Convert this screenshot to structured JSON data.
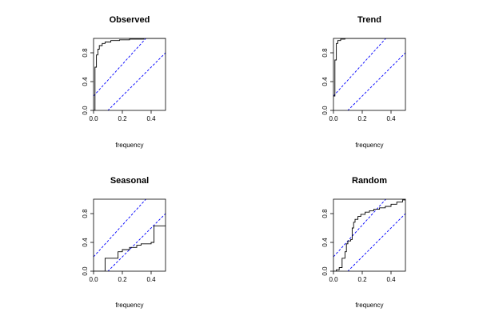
{
  "figure": {
    "background": "#ffffff"
  },
  "colors": {
    "step_line": "#000000",
    "band_line": "#0000ff",
    "axis": "#000000"
  },
  "chart_data": [
    {
      "type": "line",
      "title": "Observed",
      "xlabel": "frequency",
      "ylabel": "",
      "xlim": [
        0,
        0.5
      ],
      "ylim": [
        0,
        1
      ],
      "x_ticks": [
        "0.0",
        "0.2",
        "0.4"
      ],
      "y_ticks": [
        "0.0",
        "0.4",
        "0.8"
      ],
      "grid": false,
      "series": [
        {
          "style": "step",
          "x": [
            0,
            0.01,
            0.01,
            0.02,
            0.03,
            0.04,
            0.06,
            0.08,
            0.12,
            0.18,
            0.25,
            0.35,
            0.5
          ],
          "y": [
            0,
            0,
            0.6,
            0.77,
            0.85,
            0.9,
            0.93,
            0.95,
            0.97,
            0.98,
            0.99,
            1.0,
            1.0
          ]
        }
      ],
      "bands": [
        {
          "style": "dashed",
          "x": [
            0,
            0.5
          ],
          "y": [
            0.2,
            1.3
          ]
        },
        {
          "style": "dashed",
          "x": [
            0,
            0.5
          ],
          "y": [
            -0.2,
            0.8
          ]
        }
      ]
    },
    {
      "type": "line",
      "title": "Trend",
      "xlabel": "frequency",
      "ylabel": "",
      "xlim": [
        0,
        0.5
      ],
      "ylim": [
        0,
        1
      ],
      "x_ticks": [
        "0.0",
        "0.2",
        "0.4"
      ],
      "y_ticks": [
        "0.0",
        "0.4",
        "0.8"
      ],
      "grid": false,
      "series": [
        {
          "style": "step",
          "x": [
            0,
            0.01,
            0.02,
            0.03,
            0.05,
            0.08,
            0.5
          ],
          "y": [
            0.2,
            0.7,
            0.93,
            0.97,
            0.99,
            1.0,
            1.0
          ]
        }
      ],
      "bands": [
        {
          "style": "dashed",
          "x": [
            0,
            0.5
          ],
          "y": [
            0.2,
            1.3
          ]
        },
        {
          "style": "dashed",
          "x": [
            0,
            0.5
          ],
          "y": [
            -0.2,
            0.8
          ]
        }
      ]
    },
    {
      "type": "line",
      "title": "Seasonal",
      "xlabel": "frequency",
      "ylabel": "",
      "xlim": [
        0,
        0.5
      ],
      "ylim": [
        0,
        1
      ],
      "x_ticks": [
        "0.0",
        "0.2",
        "0.4"
      ],
      "y_ticks": [
        "0.0",
        "0.4",
        "0.8"
      ],
      "grid": false,
      "series": [
        {
          "style": "step",
          "x": [
            0,
            0.08,
            0.17,
            0.2,
            0.25,
            0.3,
            0.33,
            0.4,
            0.42,
            0.5
          ],
          "y": [
            0,
            0.18,
            0.27,
            0.3,
            0.33,
            0.36,
            0.38,
            0.4,
            0.63,
            0.64
          ]
        }
      ],
      "bands": [
        {
          "style": "dashed",
          "x": [
            0,
            0.5
          ],
          "y": [
            0.2,
            1.3
          ]
        },
        {
          "style": "dashed",
          "x": [
            0,
            0.5
          ],
          "y": [
            -0.2,
            0.8
          ]
        }
      ]
    },
    {
      "type": "line",
      "title": "Random",
      "xlabel": "frequency",
      "ylabel": "",
      "xlim": [
        0,
        0.5
      ],
      "ylim": [
        0,
        1
      ],
      "x_ticks": [
        "0.0",
        "0.2",
        "0.4"
      ],
      "y_ticks": [
        "0.0",
        "0.4",
        "0.8"
      ],
      "grid": false,
      "series": [
        {
          "style": "step",
          "x": [
            0,
            0.02,
            0.04,
            0.06,
            0.08,
            0.09,
            0.1,
            0.12,
            0.13,
            0.14,
            0.15,
            0.17,
            0.19,
            0.22,
            0.25,
            0.28,
            0.32,
            0.36,
            0.4,
            0.44,
            0.48,
            0.5
          ],
          "y": [
            0,
            0.02,
            0.05,
            0.18,
            0.27,
            0.38,
            0.42,
            0.44,
            0.6,
            0.68,
            0.72,
            0.76,
            0.79,
            0.82,
            0.84,
            0.86,
            0.88,
            0.9,
            0.93,
            0.96,
            0.99,
            1.0
          ]
        }
      ],
      "bands": [
        {
          "style": "dashed",
          "x": [
            0,
            0.5
          ],
          "y": [
            0.2,
            1.3
          ]
        },
        {
          "style": "dashed",
          "x": [
            0,
            0.5
          ],
          "y": [
            -0.2,
            0.8
          ]
        }
      ]
    }
  ]
}
